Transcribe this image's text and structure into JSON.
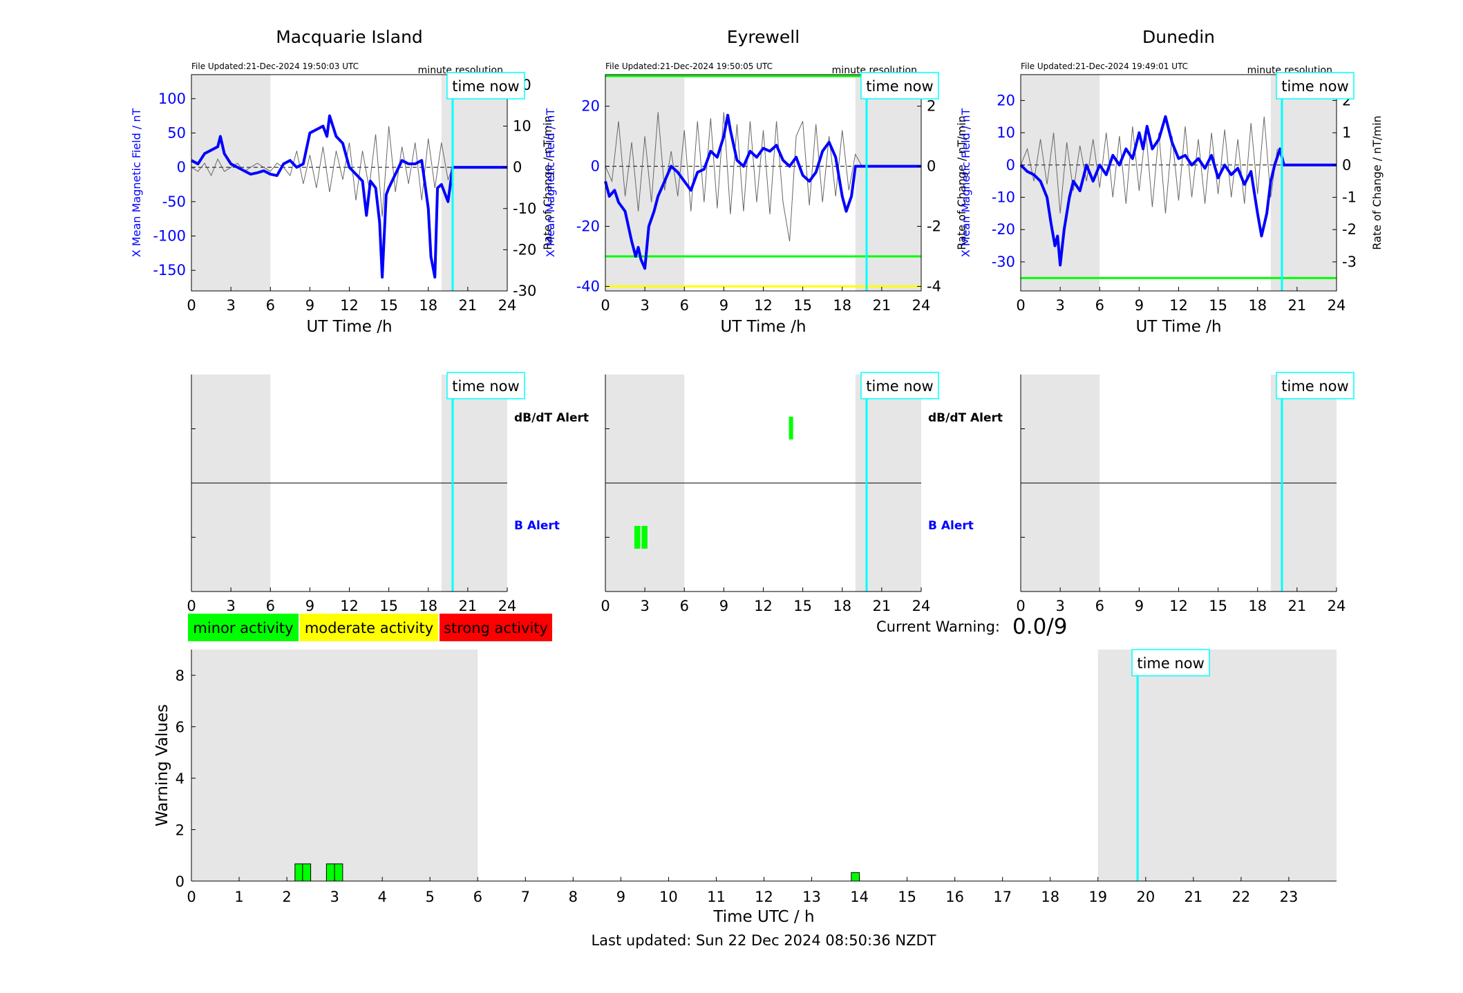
{
  "colors": {
    "blue": "#0000ff",
    "cyan": "#00ffff",
    "green": "#00ff00",
    "yellow": "#ffff00",
    "red": "#ff0000",
    "night_shade": "#e6e6e6",
    "rate_trace": "#666666"
  },
  "labels": {
    "x_axis_station": "UT Time /h",
    "y_left_station": "X Mean Magnetic Field / nT",
    "y_right_station": "Rate of Change / nT/min",
    "minute_resolution": "minute resolution",
    "time_now": "time now",
    "dbdt_alert": "dB/dT Alert",
    "b_alert": "B Alert",
    "current_warning_label": "Current Warning:",
    "current_warning_value": "0.0/9",
    "warning_y_label": "Warning Values",
    "warning_x_label": "Time UTC / h",
    "last_updated": "Last updated: Sun 22 Dec 2024 08:50:36 NZDT"
  },
  "legend": [
    {
      "label": "minor activity",
      "color": "#00ff00"
    },
    {
      "label": "moderate activity",
      "color": "#ffff00"
    },
    {
      "label": "strong activity",
      "color": "#ff0000"
    }
  ],
  "chart_data": [
    {
      "type": "line",
      "title": "Macquarie Island",
      "file_updated": "File Updated:21-Dec-2024 19:50:03 UTC",
      "xlim": [
        0,
        24
      ],
      "x_ticks": [
        0,
        3,
        6,
        9,
        12,
        15,
        18,
        21,
        24
      ],
      "ylim_left": [
        -180,
        135
      ],
      "y_ticks_left": [
        100,
        50,
        0,
        -50,
        -100,
        -150
      ],
      "ylim_right": [
        -30,
        22.5
      ],
      "y_ticks_right": [
        20,
        10,
        0,
        -10,
        -20,
        -30
      ],
      "shaded_ranges": [
        [
          0,
          6
        ],
        [
          19,
          24
        ]
      ],
      "time_now": 19.85,
      "thresholds": [],
      "series": [
        {
          "axis": "left",
          "x": [
            0,
            0.5,
            1,
            1.5,
            2,
            2.2,
            2.5,
            3,
            3.5,
            4,
            4.5,
            5,
            5.5,
            6,
            6.5,
            7,
            7.5,
            8,
            8.5,
            9,
            9.5,
            10,
            10.3,
            10.5,
            11,
            11.5,
            12,
            12.5,
            13,
            13.3,
            13.6,
            14,
            14.3,
            14.5,
            14.8,
            15,
            15.5,
            16,
            16.5,
            17,
            17.5,
            18,
            18.2,
            18.5,
            18.7,
            19,
            19.5,
            19.85,
            20,
            24
          ],
          "values": [
            10,
            5,
            20,
            25,
            30,
            45,
            20,
            5,
            0,
            -5,
            -10,
            -8,
            -5,
            -10,
            -12,
            5,
            10,
            0,
            5,
            50,
            55,
            60,
            45,
            75,
            45,
            35,
            0,
            -10,
            -20,
            -70,
            -20,
            -30,
            -80,
            -160,
            -40,
            -30,
            -10,
            10,
            5,
            5,
            10,
            -60,
            -130,
            -160,
            -30,
            -25,
            -50,
            0,
            0,
            0
          ]
        },
        {
          "axis": "right",
          "x": [
            0,
            0.5,
            1,
            1.5,
            2,
            2.5,
            3,
            3.5,
            4,
            4.5,
            5,
            5.5,
            6,
            6.5,
            7,
            7.5,
            8,
            8.5,
            9,
            9.5,
            10,
            10.5,
            11,
            11.5,
            12,
            12.5,
            13,
            13.5,
            14,
            14.5,
            15,
            15.5,
            16,
            16.5,
            17,
            17.5,
            18,
            18.5,
            19,
            19.5,
            19.85
          ],
          "values": [
            0,
            -1,
            1,
            -2,
            2,
            -1,
            0,
            1,
            -1,
            0,
            1,
            0,
            -1,
            1,
            0,
            -2,
            4,
            -4,
            3,
            -5,
            5,
            -6,
            4,
            -3,
            6,
            -8,
            4,
            -5,
            8,
            -12,
            10,
            -6,
            5,
            -4,
            6,
            -8,
            7,
            -5,
            6,
            -3,
            0
          ]
        }
      ]
    },
    {
      "type": "line",
      "title": "Eyrewell",
      "file_updated": "File Updated:21-Dec-2024 19:50:05 UTC",
      "xlim": [
        0,
        24
      ],
      "x_ticks": [
        0,
        3,
        6,
        9,
        12,
        15,
        18,
        21,
        24
      ],
      "ylim_left": [
        -41.5,
        30.5
      ],
      "y_ticks_left": [
        20,
        0,
        -20,
        -40
      ],
      "ylim_right": [
        -4.15,
        3.05
      ],
      "y_ticks_right": [
        2,
        0,
        -2,
        -4
      ],
      "shaded_ranges": [
        [
          0,
          6
        ],
        [
          19,
          24
        ]
      ],
      "time_now": 19.85,
      "thresholds": [
        {
          "axis": "left",
          "value": 30,
          "color": "#00ff00",
          "xmax": 19.5
        },
        {
          "axis": "left",
          "value": -30,
          "color": "#00ff00"
        },
        {
          "axis": "left",
          "value": -40,
          "color": "#ffff00"
        }
      ],
      "series": [
        {
          "axis": "left",
          "x": [
            0,
            0.3,
            0.7,
            1,
            1.5,
            2,
            2.3,
            2.5,
            2.7,
            3,
            3.3,
            3.7,
            4,
            4.5,
            5,
            5.5,
            6,
            6.5,
            7,
            7.5,
            8,
            8.5,
            9,
            9.3,
            9.5,
            10,
            10.5,
            11,
            11.5,
            12,
            12.5,
            13,
            13.5,
            14,
            14.5,
            15,
            15.5,
            16,
            16.5,
            17,
            17.5,
            18,
            18.3,
            18.7,
            19,
            19.5,
            19.85,
            20,
            24
          ],
          "values": [
            -5,
            -10,
            -8,
            -12,
            -15,
            -25,
            -30,
            -27,
            -31,
            -34,
            -20,
            -15,
            -10,
            -5,
            0,
            -2,
            -5,
            -8,
            -2,
            -1,
            5,
            3,
            10,
            17,
            12,
            2,
            0,
            5,
            3,
            6,
            5,
            7,
            2,
            0,
            3,
            -3,
            -5,
            -2,
            5,
            8,
            3,
            -10,
            -15,
            -10,
            0,
            0,
            0,
            0,
            0
          ]
        },
        {
          "axis": "right",
          "x": [
            0,
            0.5,
            1,
            1.5,
            2,
            2.5,
            3,
            3.5,
            4,
            4.5,
            5,
            5.5,
            6,
            6.5,
            7,
            7.5,
            8,
            8.5,
            9,
            9.5,
            10,
            10.5,
            11,
            11.5,
            12,
            12.5,
            13,
            13.5,
            14,
            14.5,
            15,
            15.5,
            16,
            16.5,
            17,
            17.5,
            18,
            18.5,
            19,
            19.5
          ],
          "values": [
            0,
            -0.5,
            1.5,
            -1,
            0.8,
            -1.5,
            1,
            -1.2,
            1.8,
            -0.8,
            0.5,
            -1,
            1.2,
            -1.5,
            1.5,
            -1.2,
            1.6,
            -1.4,
            1.8,
            -1.6,
            1.4,
            -1.5,
            1.5,
            -1.2,
            1.2,
            -1.6,
            1.5,
            -1.2,
            -2.5,
            1,
            1.5,
            -1.3,
            1.4,
            -1.2,
            1,
            -1,
            1.2,
            -0.8,
            0.4,
            0
          ]
        }
      ]
    },
    {
      "type": "line",
      "title": "Dunedin",
      "file_updated": "File Updated:21-Dec-2024 19:49:01 UTC",
      "xlim": [
        0,
        24
      ],
      "x_ticks": [
        0,
        3,
        6,
        9,
        12,
        15,
        18,
        21,
        24
      ],
      "ylim_left": [
        -39,
        28
      ],
      "y_ticks_left": [
        20,
        10,
        0,
        -10,
        -20,
        -30
      ],
      "ylim_right": [
        -3.9,
        2.8
      ],
      "y_ticks_right": [
        2,
        1,
        0,
        -1,
        -2,
        -3
      ],
      "shaded_ranges": [
        [
          0,
          6
        ],
        [
          19,
          24
        ]
      ],
      "time_now": 19.85,
      "thresholds": [
        {
          "axis": "left",
          "value": -35,
          "color": "#00ff00"
        }
      ],
      "series": [
        {
          "axis": "left",
          "x": [
            0,
            0.5,
            1,
            1.5,
            2,
            2.3,
            2.6,
            2.8,
            3,
            3.3,
            3.7,
            4,
            4.5,
            5,
            5.5,
            6,
            6.5,
            7,
            7.5,
            8,
            8.5,
            9,
            9.3,
            9.6,
            10,
            10.5,
            11,
            11.5,
            12,
            12.5,
            13,
            13.5,
            14,
            14.5,
            15,
            15.5,
            16,
            16.5,
            17,
            17.5,
            18,
            18.3,
            18.7,
            19,
            19.3,
            19.7,
            20,
            24
          ],
          "values": [
            0,
            -2,
            -3,
            -5,
            -10,
            -18,
            -25,
            -22,
            -31,
            -20,
            -10,
            -5,
            -8,
            0,
            -5,
            0,
            -3,
            3,
            0,
            5,
            2,
            10,
            5,
            12,
            5,
            8,
            15,
            7,
            2,
            3,
            0,
            2,
            -1,
            3,
            -4,
            0,
            -3,
            -1,
            -6,
            -2,
            -15,
            -22,
            -15,
            -5,
            0,
            5,
            0,
            0
          ]
        },
        {
          "axis": "right",
          "x": [
            0,
            0.5,
            1,
            1.5,
            2,
            2.5,
            3,
            3.5,
            4,
            4.5,
            5,
            5.5,
            6,
            6.5,
            7,
            7.5,
            8,
            8.5,
            9,
            9.5,
            10,
            10.5,
            11,
            11.5,
            12,
            12.5,
            13,
            13.5,
            14,
            14.5,
            15,
            15.5,
            16,
            16.5,
            17,
            17.5,
            18,
            18.5,
            19,
            19.5
          ],
          "values": [
            0,
            0.5,
            -0.5,
            0.8,
            -0.6,
            1,
            -1.5,
            0.7,
            -0.8,
            0.6,
            -0.5,
            0.8,
            -0.7,
            1,
            -1,
            0.9,
            -1.2,
            1.2,
            -0.8,
            1.1,
            -1.3,
            1,
            -1.5,
            0.9,
            -1.1,
            1.2,
            -1,
            0.8,
            -1.2,
            1,
            -0.9,
            1.1,
            -1,
            0.8,
            -1.2,
            1.3,
            -0.9,
            1.5,
            -1,
            0.5
          ]
        }
      ]
    },
    {
      "type": "bar",
      "title": "",
      "role": "alert-panels",
      "xlim": [
        0,
        24
      ],
      "x_ticks": [
        0,
        3,
        6,
        9,
        12,
        15,
        18,
        21,
        24
      ],
      "stations": [
        {
          "shaded_ranges": [
            [
              0,
              6
            ],
            [
              19,
              24
            ]
          ],
          "time_now": 19.85,
          "dbdt_alerts": [],
          "b_alerts": []
        },
        {
          "shaded_ranges": [
            [
              0,
              6
            ],
            [
              19,
              24
            ]
          ],
          "time_now": 19.85,
          "dbdt_alerts": [
            [
              13.95,
              14.05
            ]
          ],
          "b_alerts": [
            [
              2.2,
              2.65
            ],
            [
              2.75,
              3.2
            ]
          ]
        },
        {
          "shaded_ranges": [
            [
              0,
              6
            ],
            [
              19,
              24
            ]
          ],
          "time_now": 19.85,
          "dbdt_alerts": [],
          "b_alerts": []
        }
      ]
    },
    {
      "type": "bar",
      "title": "",
      "xlabel": "Time UTC / h",
      "ylabel": "Warning Values",
      "xlim": [
        0,
        24
      ],
      "x_ticks": [
        0,
        1,
        2,
        3,
        4,
        5,
        6,
        7,
        8,
        9,
        10,
        11,
        12,
        13,
        14,
        15,
        16,
        17,
        18,
        19,
        20,
        21,
        22,
        23
      ],
      "ylim": [
        0,
        9
      ],
      "y_ticks": [
        0,
        2,
        4,
        6,
        8
      ],
      "shaded_ranges": [
        [
          0,
          6
        ],
        [
          19,
          24
        ]
      ],
      "time_now": 19.83,
      "bars": [
        {
          "x0": 2.17,
          "x1": 2.33,
          "value": 0.67
        },
        {
          "x0": 2.33,
          "x1": 2.5,
          "value": 0.67
        },
        {
          "x0": 2.83,
          "x1": 3.0,
          "value": 0.67
        },
        {
          "x0": 3.0,
          "x1": 3.17,
          "value": 0.67
        },
        {
          "x0": 13.83,
          "x1": 14.0,
          "value": 0.33
        }
      ]
    }
  ]
}
